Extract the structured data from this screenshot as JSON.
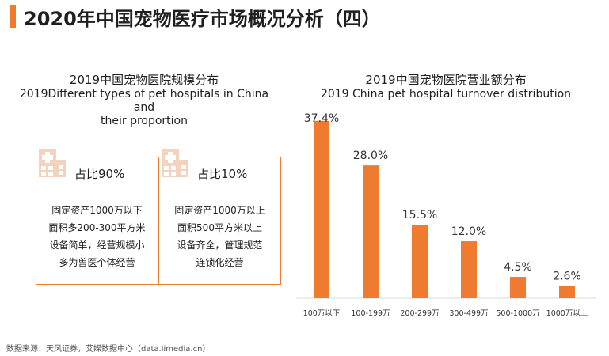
{
  "page_title": "2020年中国宠物医疗市场概况分析（四）",
  "left_panel": {
    "title_cn": "2019中国宠物医院规模分布",
    "title_en_line1": "2019Different types of pet hospitals in China and",
    "title_en_line2": "their proportion",
    "cards": [
      {
        "share": "占比90%",
        "lines": [
          "固定资产1000万以下",
          "面积多200-300平方米",
          "设备简单，经营规模小",
          "多为兽医个体经营"
        ]
      },
      {
        "share": "占比10%",
        "lines": [
          "固定资产1000万以上",
          "面积500平方米以上",
          "设备齐全，管理规范",
          "连锁化经营"
        ]
      }
    ]
  },
  "chart_data": {
    "type": "bar",
    "title": "2019中国宠物医院营业额分布",
    "subtitle": "2019 China pet  hospital turnover distribution",
    "categories": [
      "100万以下",
      "100-199万",
      "200-299万",
      "300-499万",
      "500-1000万",
      "1000万以上"
    ],
    "values": [
      37.4,
      28.0,
      15.5,
      12.0,
      4.5,
      2.6
    ],
    "value_labels": [
      "37.4%",
      "28.0%",
      "15.5%",
      "12.0%",
      "4.5%",
      "2.6%"
    ],
    "ylim": [
      0,
      40
    ],
    "grid": false,
    "bar_color": "#ee7b30"
  },
  "source": "数据来源：天风证券，艾媒数据中心（data.iimedia.cn）"
}
